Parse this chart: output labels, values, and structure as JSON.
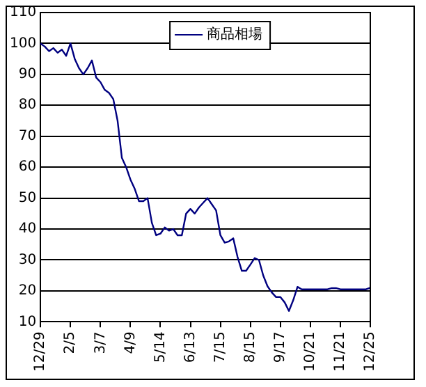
{
  "chart_data": {
    "type": "line",
    "legend": "top",
    "grid": "y",
    "marker": "none",
    "line_style": "solid",
    "categories": [
      "12/29",
      null,
      null,
      null,
      null,
      null,
      null,
      "2/5",
      null,
      null,
      null,
      null,
      null,
      null,
      "3/7",
      null,
      null,
      null,
      null,
      null,
      null,
      "4/9",
      null,
      null,
      null,
      null,
      null,
      null,
      "5/14",
      null,
      null,
      null,
      null,
      null,
      null,
      "6/13",
      null,
      null,
      null,
      null,
      null,
      null,
      "7/15",
      null,
      null,
      null,
      null,
      null,
      null,
      "8/15",
      null,
      null,
      null,
      null,
      null,
      null,
      "9/17",
      null,
      null,
      null,
      null,
      null,
      null,
      "10/21",
      null,
      null,
      null,
      null,
      null,
      null,
      "11/21",
      null,
      null,
      null,
      null,
      null,
      null,
      "12/25"
    ],
    "ylim": [
      10,
      110
    ],
    "yticks": [
      10,
      20,
      30,
      40,
      50,
      60,
      70,
      80,
      90,
      100,
      110
    ],
    "series": [
      {
        "name": "商品相場",
        "color": "#000080",
        "values": [
          100,
          99,
          97.5,
          98.5,
          97,
          98,
          96,
          100,
          95,
          92,
          90,
          92,
          94.5,
          89,
          87.5,
          85,
          84,
          82,
          75,
          63,
          60,
          56,
          53,
          49,
          49,
          50,
          42,
          38,
          38.5,
          40.5,
          39.5,
          40,
          38,
          38,
          45,
          46.5,
          45,
          47,
          48.5,
          50,
          48,
          46,
          38,
          35.6,
          36,
          37,
          31,
          26.5,
          26.5,
          28.5,
          30.6,
          30,
          25,
          21.5,
          19.5,
          18,
          18,
          16.3,
          13.5,
          17,
          21.3,
          20.5,
          20.5,
          20.5,
          20.5,
          20.5,
          20.5,
          20.5,
          20.9,
          20.9,
          20.5,
          20.5,
          20.5,
          20.5,
          20.5,
          20.5,
          20.5,
          21
        ]
      }
    ]
  }
}
